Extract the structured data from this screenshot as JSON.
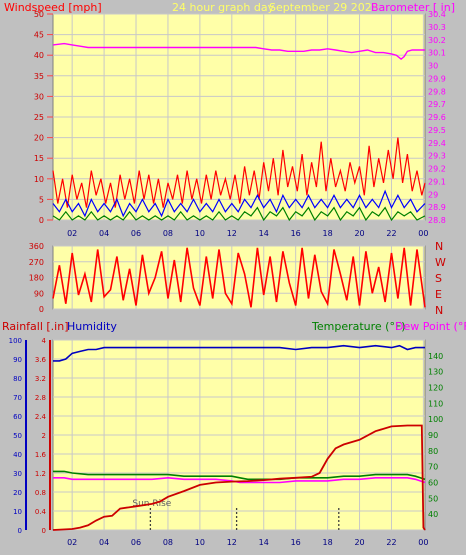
{
  "header": {
    "windspeed_label": "Windspeed [mph]",
    "title": "24 hour graph day",
    "date": "September 29 2023",
    "barometer_label": "Barometer [ in]"
  },
  "rain_header": {
    "rainfall_label": "Rainfall [.in]",
    "humidity_label": "Humidity",
    "temperature_label": "Temperature (°F)",
    "dewpoint_label": "Dew Point (°F)"
  },
  "sunrise_label": "Sun Rise",
  "colors": {
    "background": "#c0c0c0",
    "plot_bg": "#ffffa8",
    "wind": "#ff0000",
    "wind_avg": "#0000ff",
    "wind_low": "#008000",
    "barometer": "#ff00ff",
    "humidity": "#0000c0",
    "temperature": "#008000",
    "dewpoint": "#ff00ff",
    "rainfall": "#cc0000",
    "title_text": "#ffff66"
  },
  "chart_data": [
    {
      "id": "wind_barometer",
      "type": "line",
      "x_tick_labels": [
        "02",
        "04",
        "06",
        "08",
        "10",
        "12",
        "14",
        "16",
        "18",
        "20",
        "22",
        "00"
      ],
      "x_range_hours": [
        0.8,
        24.1
      ],
      "y_left": {
        "label": "Windspeed [mph]",
        "range": [
          0,
          50
        ],
        "ticks": [
          0,
          5,
          10,
          15,
          20,
          25,
          30,
          35,
          40,
          45,
          50
        ]
      },
      "y_right": {
        "label": "Barometer [ in]",
        "range": [
          28.8,
          30.4
        ],
        "ticks": [
          "28.8",
          "28.9",
          "29",
          "29.1",
          "29.2",
          "29.3",
          "29.4",
          "29.5",
          "29.6",
          "29.7",
          "29.8",
          "29.9",
          "30",
          "30.1",
          "30.2",
          "30.3",
          "30.4"
        ]
      },
      "grid": true,
      "series": [
        {
          "key": "barometer",
          "axis": "right",
          "color": "#ff00ff",
          "x": [
            0.8,
            1.5,
            2.0,
            2.5,
            3.0,
            4.0,
            5.0,
            6.0,
            7.0,
            8.0,
            9.0,
            10.0,
            11.0,
            12.0,
            13.0,
            13.5,
            14.0,
            14.5,
            15.0,
            15.5,
            16.0,
            16.5,
            17.0,
            17.5,
            18.0,
            18.5,
            19.0,
            19.5,
            20.0,
            20.5,
            21.0,
            21.5,
            22.0,
            22.3,
            22.6,
            22.8,
            23.0,
            23.3,
            23.6,
            24.1
          ],
          "y": [
            30.16,
            30.17,
            30.16,
            30.15,
            30.14,
            30.14,
            30.14,
            30.14,
            30.14,
            30.14,
            30.14,
            30.14,
            30.14,
            30.14,
            30.14,
            30.14,
            30.13,
            30.12,
            30.12,
            30.11,
            30.11,
            30.11,
            30.12,
            30.12,
            30.13,
            30.12,
            30.11,
            30.1,
            30.11,
            30.12,
            30.1,
            30.1,
            30.09,
            30.08,
            30.05,
            30.07,
            30.11,
            30.12,
            30.12,
            30.12
          ]
        },
        {
          "key": "wind_gust",
          "axis": "left",
          "color": "#ff0000",
          "x": [
            0.8,
            1.1,
            1.4,
            1.7,
            2.0,
            2.3,
            2.6,
            2.9,
            3.2,
            3.5,
            3.8,
            4.1,
            4.4,
            4.7,
            5.0,
            5.3,
            5.6,
            5.9,
            6.2,
            6.5,
            6.8,
            7.1,
            7.4,
            7.7,
            8.0,
            8.3,
            8.6,
            8.9,
            9.2,
            9.5,
            9.8,
            10.1,
            10.4,
            10.7,
            11.0,
            11.3,
            11.6,
            11.9,
            12.2,
            12.5,
            12.8,
            13.1,
            13.4,
            13.7,
            14.0,
            14.3,
            14.6,
            14.9,
            15.2,
            15.5,
            15.8,
            16.1,
            16.4,
            16.7,
            17.0,
            17.3,
            17.6,
            17.9,
            18.2,
            18.5,
            18.8,
            19.1,
            19.4,
            19.7,
            20.0,
            20.3,
            20.6,
            20.9,
            21.2,
            21.5,
            21.8,
            22.1,
            22.4,
            22.7,
            23.0,
            23.3,
            23.6,
            23.9,
            24.1
          ],
          "y": [
            12,
            4,
            10,
            3,
            11,
            5,
            9,
            3,
            12,
            6,
            10,
            4,
            9,
            3,
            11,
            5,
            10,
            4,
            12,
            5,
            11,
            4,
            10,
            3,
            9,
            5,
            11,
            4,
            12,
            5,
            10,
            4,
            11,
            5,
            12,
            6,
            10,
            5,
            11,
            4,
            13,
            6,
            12,
            5,
            14,
            7,
            15,
            6,
            17,
            8,
            13,
            7,
            16,
            6,
            14,
            8,
            19,
            7,
            15,
            8,
            12,
            7,
            14,
            9,
            13,
            6,
            18,
            8,
            15,
            9,
            17,
            10,
            20,
            9,
            16,
            7,
            12,
            6,
            9
          ]
        },
        {
          "key": "wind_avg",
          "axis": "left",
          "color": "#0000ff",
          "x": [
            0.8,
            1.2,
            1.6,
            2.0,
            2.4,
            2.8,
            3.2,
            3.6,
            4.0,
            4.4,
            4.8,
            5.2,
            5.6,
            6.0,
            6.4,
            6.8,
            7.2,
            7.6,
            8.0,
            8.4,
            8.8,
            9.2,
            9.6,
            10.0,
            10.4,
            10.8,
            11.2,
            11.6,
            12.0,
            12.4,
            12.8,
            13.2,
            13.6,
            14.0,
            14.4,
            14.8,
            15.2,
            15.6,
            16.0,
            16.4,
            16.8,
            17.2,
            17.6,
            18.0,
            18.4,
            18.8,
            19.2,
            19.6,
            20.0,
            20.4,
            20.8,
            21.2,
            21.6,
            22.0,
            22.4,
            22.8,
            23.2,
            23.6,
            24.1
          ],
          "y": [
            4,
            2,
            5,
            2,
            4,
            1,
            5,
            2,
            4,
            2,
            5,
            1,
            4,
            2,
            5,
            2,
            4,
            1,
            5,
            2,
            4,
            2,
            5,
            2,
            4,
            2,
            5,
            2,
            4,
            2,
            5,
            3,
            6,
            3,
            5,
            2,
            6,
            3,
            5,
            3,
            6,
            3,
            5,
            3,
            6,
            3,
            5,
            3,
            6,
            3,
            5,
            3,
            7,
            3,
            6,
            3,
            5,
            2,
            4
          ]
        },
        {
          "key": "wind_low",
          "axis": "left",
          "color": "#008000",
          "x": [
            0.8,
            1.2,
            1.6,
            2.0,
            2.4,
            2.8,
            3.2,
            3.6,
            4.0,
            4.4,
            4.8,
            5.2,
            5.6,
            6.0,
            6.4,
            6.8,
            7.2,
            7.6,
            8.0,
            8.4,
            8.8,
            9.2,
            9.6,
            10.0,
            10.4,
            10.8,
            11.2,
            11.6,
            12.0,
            12.4,
            12.8,
            13.2,
            13.6,
            14.0,
            14.4,
            14.8,
            15.2,
            15.6,
            16.0,
            16.4,
            16.8,
            17.2,
            17.6,
            18.0,
            18.4,
            18.8,
            19.2,
            19.6,
            20.0,
            20.4,
            20.8,
            21.2,
            21.6,
            22.0,
            22.4,
            22.8,
            23.2,
            23.6,
            24.1
          ],
          "y": [
            1,
            0,
            2,
            0,
            1,
            0,
            2,
            0,
            1,
            0,
            1,
            0,
            2,
            0,
            1,
            0,
            1,
            0,
            1,
            0,
            2,
            0,
            1,
            0,
            1,
            0,
            2,
            0,
            1,
            0,
            2,
            1,
            3,
            0,
            2,
            1,
            3,
            0,
            2,
            1,
            3,
            0,
            2,
            1,
            3,
            0,
            2,
            1,
            3,
            0,
            2,
            1,
            3,
            0,
            2,
            1,
            2,
            0,
            1
          ]
        }
      ]
    },
    {
      "id": "wind_direction",
      "type": "line",
      "x_range_hours": [
        0.8,
        24.1
      ],
      "y_left": {
        "range": [
          0,
          360
        ],
        "ticks": [
          0,
          90,
          180,
          270,
          360
        ]
      },
      "y_right_labels": [
        "N",
        "W",
        "S",
        "E",
        "N"
      ],
      "grid": true,
      "series": [
        {
          "key": "direction",
          "color": "#ff0000",
          "x": [
            0.8,
            1.2,
            1.6,
            2.0,
            2.4,
            2.8,
            3.2,
            3.6,
            4.0,
            4.4,
            4.8,
            5.2,
            5.6,
            6.0,
            6.4,
            6.8,
            7.2,
            7.6,
            8.0,
            8.4,
            8.8,
            9.2,
            9.6,
            10.0,
            10.4,
            10.8,
            11.2,
            11.6,
            12.0,
            12.4,
            12.8,
            13.2,
            13.6,
            14.0,
            14.4,
            14.8,
            15.2,
            15.6,
            16.0,
            16.4,
            16.8,
            17.2,
            17.6,
            18.0,
            18.4,
            18.8,
            19.2,
            19.6,
            20.0,
            20.4,
            20.8,
            21.2,
            21.6,
            22.0,
            22.4,
            22.8,
            23.2,
            23.6,
            24.1
          ],
          "y": [
            60,
            250,
            30,
            320,
            80,
            200,
            40,
            340,
            70,
            110,
            300,
            50,
            230,
            20,
            310,
            90,
            180,
            330,
            60,
            280,
            40,
            350,
            120,
            20,
            300,
            60,
            340,
            90,
            30,
            320,
            200,
            10,
            350,
            80,
            300,
            40,
            330,
            150,
            20,
            350,
            60,
            310,
            100,
            30,
            340,
            200,
            50,
            300,
            20,
            330,
            90,
            240,
            40,
            320,
            60,
            350,
            20,
            340,
            10
          ]
        }
      ]
    },
    {
      "id": "rain_humidity_temp",
      "type": "line",
      "x_tick_labels": [
        "02",
        "04",
        "06",
        "08",
        "10",
        "12",
        "14",
        "16",
        "18",
        "20",
        "22",
        "00"
      ],
      "x_range_hours": [
        0.8,
        24.1
      ],
      "y_left_rain": {
        "label": "Rainfall [.in]",
        "range": [
          0,
          4.0
        ],
        "ticks": [
          "0",
          "0.4",
          "0.8",
          "1.2",
          "1.6",
          "2",
          "2.4",
          "2.8",
          "3.2",
          "3.6",
          "4"
        ]
      },
      "y_left_humidity": {
        "label": "Humidity",
        "range": [
          0,
          100
        ],
        "ticks": [
          0,
          10,
          20,
          30,
          40,
          50,
          60,
          70,
          80,
          90,
          100
        ]
      },
      "y_right": {
        "label": "Temperature (°F)",
        "range": [
          30,
          150
        ],
        "ticks": [
          40,
          50,
          60,
          70,
          80,
          90,
          100,
          110,
          120,
          130,
          140
        ]
      },
      "grid": true,
      "series": [
        {
          "key": "humidity",
          "axis": "humidity",
          "color": "#0000c0",
          "x": [
            0.8,
            1.2,
            1.6,
            2.0,
            2.5,
            3.0,
            3.5,
            4.0,
            5.0,
            6.0,
            7.0,
            8.0,
            9.0,
            10.0,
            11.0,
            12.0,
            13.0,
            14.0,
            15.0,
            16.0,
            17.0,
            18.0,
            19.0,
            20.0,
            21.0,
            22.0,
            22.5,
            23.0,
            23.5,
            24.1
          ],
          "y": [
            89,
            89,
            90,
            93,
            94,
            95,
            95,
            96,
            96,
            96,
            96,
            96,
            96,
            96,
            96,
            96,
            96,
            96,
            96,
            95,
            96,
            96,
            97,
            96,
            97,
            96,
            97,
            95,
            96,
            96
          ]
        },
        {
          "key": "temperature",
          "axis": "temp",
          "color": "#008000",
          "x": [
            0.8,
            1.5,
            2.0,
            3.0,
            4.0,
            5.0,
            6.0,
            7.0,
            8.0,
            9.0,
            10.0,
            11.0,
            12.0,
            12.5,
            13.0,
            14.0,
            15.0,
            16.0,
            17.0,
            18.0,
            19.0,
            20.0,
            21.0,
            22.0,
            23.0,
            23.5,
            23.8,
            24.1
          ],
          "y": [
            67,
            67,
            66,
            65,
            65,
            65,
            65,
            65,
            65,
            64,
            64,
            64,
            64,
            63,
            62,
            62,
            62,
            63,
            63,
            63,
            64,
            64,
            65,
            65,
            65,
            64,
            63,
            62
          ]
        },
        {
          "key": "dewpoint",
          "axis": "temp",
          "color": "#ff00ff",
          "x": [
            0.8,
            1.5,
            2.0,
            3.0,
            4.0,
            5.0,
            6.0,
            7.0,
            8.0,
            9.0,
            10.0,
            11.0,
            12.0,
            12.5,
            13.0,
            14.0,
            15.0,
            16.0,
            17.0,
            18.0,
            19.0,
            20.0,
            21.0,
            22.0,
            23.0,
            23.5,
            23.8,
            24.1
          ],
          "y": [
            63,
            63,
            62,
            62,
            62,
            62,
            62,
            62,
            63,
            62,
            62,
            62,
            61,
            60,
            60,
            60,
            60,
            61,
            61,
            61,
            62,
            62,
            63,
            63,
            63,
            62,
            61,
            60
          ]
        },
        {
          "key": "rainfall",
          "axis": "rain",
          "color": "#cc0000",
          "x": [
            0.8,
            2.0,
            2.5,
            3.0,
            3.5,
            4.0,
            4.5,
            5.0,
            6.0,
            7.0,
            7.5,
            8.0,
            9.0,
            10.0,
            11.0,
            12.0,
            13.0,
            14.0,
            15.0,
            16.0,
            17.0,
            17.5,
            18.0,
            18.5,
            19.0,
            20.0,
            21.0,
            22.0,
            23.0,
            23.9,
            24.0,
            24.1
          ],
          "y": [
            0,
            0.02,
            0.05,
            0.1,
            0.2,
            0.28,
            0.3,
            0.45,
            0.5,
            0.55,
            0.6,
            0.7,
            0.82,
            0.95,
            1.0,
            1.02,
            1.03,
            1.05,
            1.08,
            1.1,
            1.12,
            1.2,
            1.5,
            1.72,
            1.8,
            1.9,
            2.08,
            2.18,
            2.2,
            2.2,
            0.05,
            0
          ]
        }
      ],
      "markers": [
        {
          "x_hours": 6.9,
          "label": "Sun Rise"
        },
        {
          "x_hours": 12.3,
          "label": ""
        },
        {
          "x_hours": 18.7,
          "label": ""
        }
      ]
    }
  ]
}
